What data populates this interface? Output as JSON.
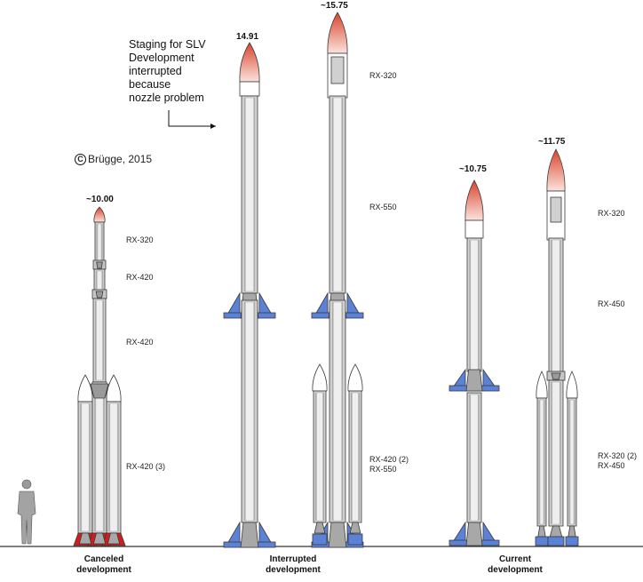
{
  "copyright": {
    "symbol": "C",
    "text": "Brügge, 2015"
  },
  "note": {
    "text": "Staging for SLV\nDevelopment\ninterrupted\nbecause\nnozzle problem"
  },
  "groups": [
    {
      "caption": "Canceled\ndevelopment"
    },
    {
      "caption": "Interrupted\ndevelopment"
    },
    {
      "caption": "Current\ndevelopment"
    }
  ],
  "rockets": [
    {
      "height_label": "~10.00",
      "stage_labels": [
        "RX-320",
        "RX-420",
        "RX-420",
        "RX-420 (3)"
      ]
    },
    {
      "height_label": "14.91",
      "stage_labels": []
    },
    {
      "height_label": "~15.75",
      "stage_labels": [
        "RX-320",
        "RX-550",
        "RX-420 (2)\nRX-550"
      ]
    },
    {
      "height_label": "~10.75",
      "stage_labels": []
    },
    {
      "height_label": "~11.75",
      "stage_labels": [
        "RX-320",
        "RX-450",
        "RX-320 (2)\nRX-450"
      ]
    }
  ],
  "colors": {
    "body": "#d3d3d3",
    "outline": "#3a3a3a",
    "nose_tip": "#d9432b",
    "nose_base": "#fbe3dd",
    "fin_blue": "#5b82d6",
    "fin_red": "#d21d1d",
    "ground": "#333333"
  },
  "icons": [
    "copyright-icon",
    "arrow-icon",
    "human-figure-icon"
  ]
}
